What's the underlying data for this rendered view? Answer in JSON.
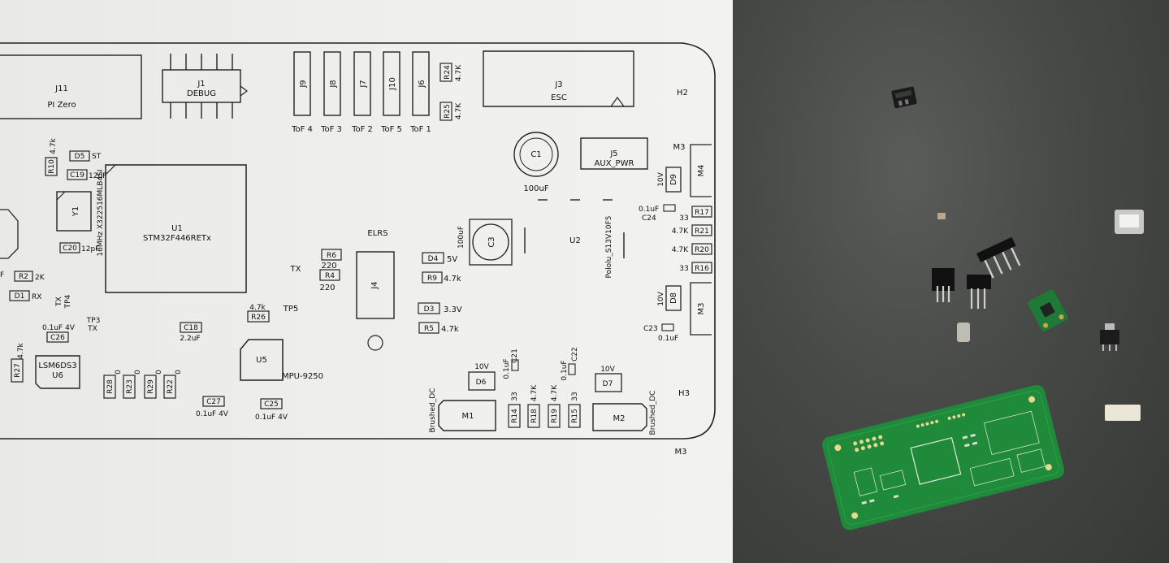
{
  "pcb_silkscreen": {
    "connectors": {
      "j11": {
        "ref": "J11",
        "value": "PI Zero"
      },
      "j1": {
        "ref": "J1",
        "value": "DEBUG"
      },
      "j3": {
        "ref": "J3",
        "value": "ESC"
      },
      "j5": {
        "ref": "J5",
        "value": "AUX_PWR"
      },
      "j4": {
        "ref": "J4"
      },
      "j9": {
        "ref": "J9",
        "label": "ToF 4"
      },
      "j8": {
        "ref": "J8",
        "label": "ToF 3"
      },
      "j7": {
        "ref": "J7",
        "label": "ToF 2"
      },
      "j10": {
        "ref": "J10",
        "label": "ToF 5"
      },
      "j6": {
        "ref": "J6",
        "label": "ToF 1"
      }
    },
    "ics": {
      "u1": {
        "ref": "U1",
        "value": "STM32F446RETx"
      },
      "u2": {
        "ref": "U2",
        "value": "Pololu_S13V10F5"
      },
      "u5": {
        "ref": "U5",
        "value": "MPU-9250"
      },
      "u6": {
        "ref": "U6",
        "value": "LSM6DS3"
      },
      "y1": {
        "ref": "Y1",
        "value": "16MHz X322516MLB4SI"
      }
    },
    "caps": {
      "c1": {
        "ref": "C1",
        "value": "100uF"
      },
      "c3": {
        "ref": "C3",
        "value": "100uF"
      },
      "c18": {
        "ref": "C18",
        "value": "2.2uF"
      },
      "c19": {
        "ref": "C19",
        "value": "12pF"
      },
      "c20": {
        "ref": "C20",
        "value": "12pF"
      },
      "c21": {
        "ref": "C21",
        "value": "0.1uF"
      },
      "c22": {
        "ref": "C22",
        "value": "0.1uF"
      },
      "c23": {
        "ref": "C23",
        "value": "0.1uF"
      },
      "c24": {
        "ref": "C24",
        "value": "0.1uF"
      },
      "c25": {
        "ref": "C25",
        "value": "0.1uF 4V"
      },
      "c26": {
        "ref": "C26",
        "value": "0.1uF 4V"
      },
      "c27": {
        "ref": "C27",
        "value": "0.1uF 4V"
      }
    },
    "resistors": {
      "r2": {
        "ref": "R2",
        "value": "2K"
      },
      "r4": {
        "ref": "R4",
        "value": "220"
      },
      "r5": {
        "ref": "R5",
        "value": "4.7k"
      },
      "r6": {
        "ref": "R6",
        "value": "220"
      },
      "r9": {
        "ref": "R9",
        "value": "4.7k"
      },
      "r10": {
        "ref": "R10",
        "value": "4.7k"
      },
      "r14": {
        "ref": "R14",
        "value": "33"
      },
      "r15": {
        "ref": "R15",
        "value": "33"
      },
      "r16": {
        "ref": "R16",
        "value": "33"
      },
      "r17": {
        "ref": "R17",
        "value": "33"
      },
      "r18": {
        "ref": "R18",
        "value": "4.7K"
      },
      "r19": {
        "ref": "R19",
        "value": "4.7K"
      },
      "r20": {
        "ref": "R20",
        "value": "4.7K"
      },
      "r21": {
        "ref": "R21",
        "value": "4.7K"
      },
      "r22": {
        "ref": "R22",
        "value": "0"
      },
      "r23": {
        "ref": "R23",
        "value": "0"
      },
      "r24": {
        "ref": "R24",
        "value": "4.7K"
      },
      "r25": {
        "ref": "R25",
        "value": "4.7K"
      },
      "r26": {
        "ref": "R26",
        "value": "4.7k"
      },
      "r27": {
        "ref": "R27",
        "value": "4.7k"
      },
      "r28": {
        "ref": "R28",
        "value": "0"
      },
      "r29": {
        "ref": "R29",
        "value": "0"
      }
    },
    "diodes": {
      "d1": {
        "ref": "D1",
        "value": "RX"
      },
      "d3": {
        "ref": "D3",
        "value": "3.3V"
      },
      "d4": {
        "ref": "D4",
        "value": "5V"
      },
      "d5": {
        "ref": "D5",
        "value": "ST"
      },
      "d6": {
        "ref": "D6",
        "value": "10V"
      },
      "d7": {
        "ref": "D7",
        "value": "10V"
      },
      "d8": {
        "ref": "D8",
        "value": "10V"
      },
      "d9": {
        "ref": "D9",
        "value": "10V"
      }
    },
    "motors": {
      "m1": {
        "ref": "M1",
        "value": "Brushed_DC"
      },
      "m2": {
        "ref": "M2",
        "value": "Brushed_DC"
      }
    },
    "mounting": {
      "h2": "H2",
      "h3": "H3",
      "m3_top": "M3",
      "m3_mid": "M3",
      "m3_bottom": "M3",
      "m4": "M4"
    },
    "misc": {
      "elrs": "ELRS",
      "tx": "TX",
      "tp5": "TP5",
      "tx_tp4": "TX\nTP4",
      "tp3_tx": "TP3\nTX",
      "f_mark": "F"
    }
  },
  "colors": {
    "paper": "#eeeeec",
    "ink": "#111111",
    "desk": "#454745",
    "pcb_green": "#1f8a3a",
    "pcb_silk": "#e8f0e0"
  }
}
